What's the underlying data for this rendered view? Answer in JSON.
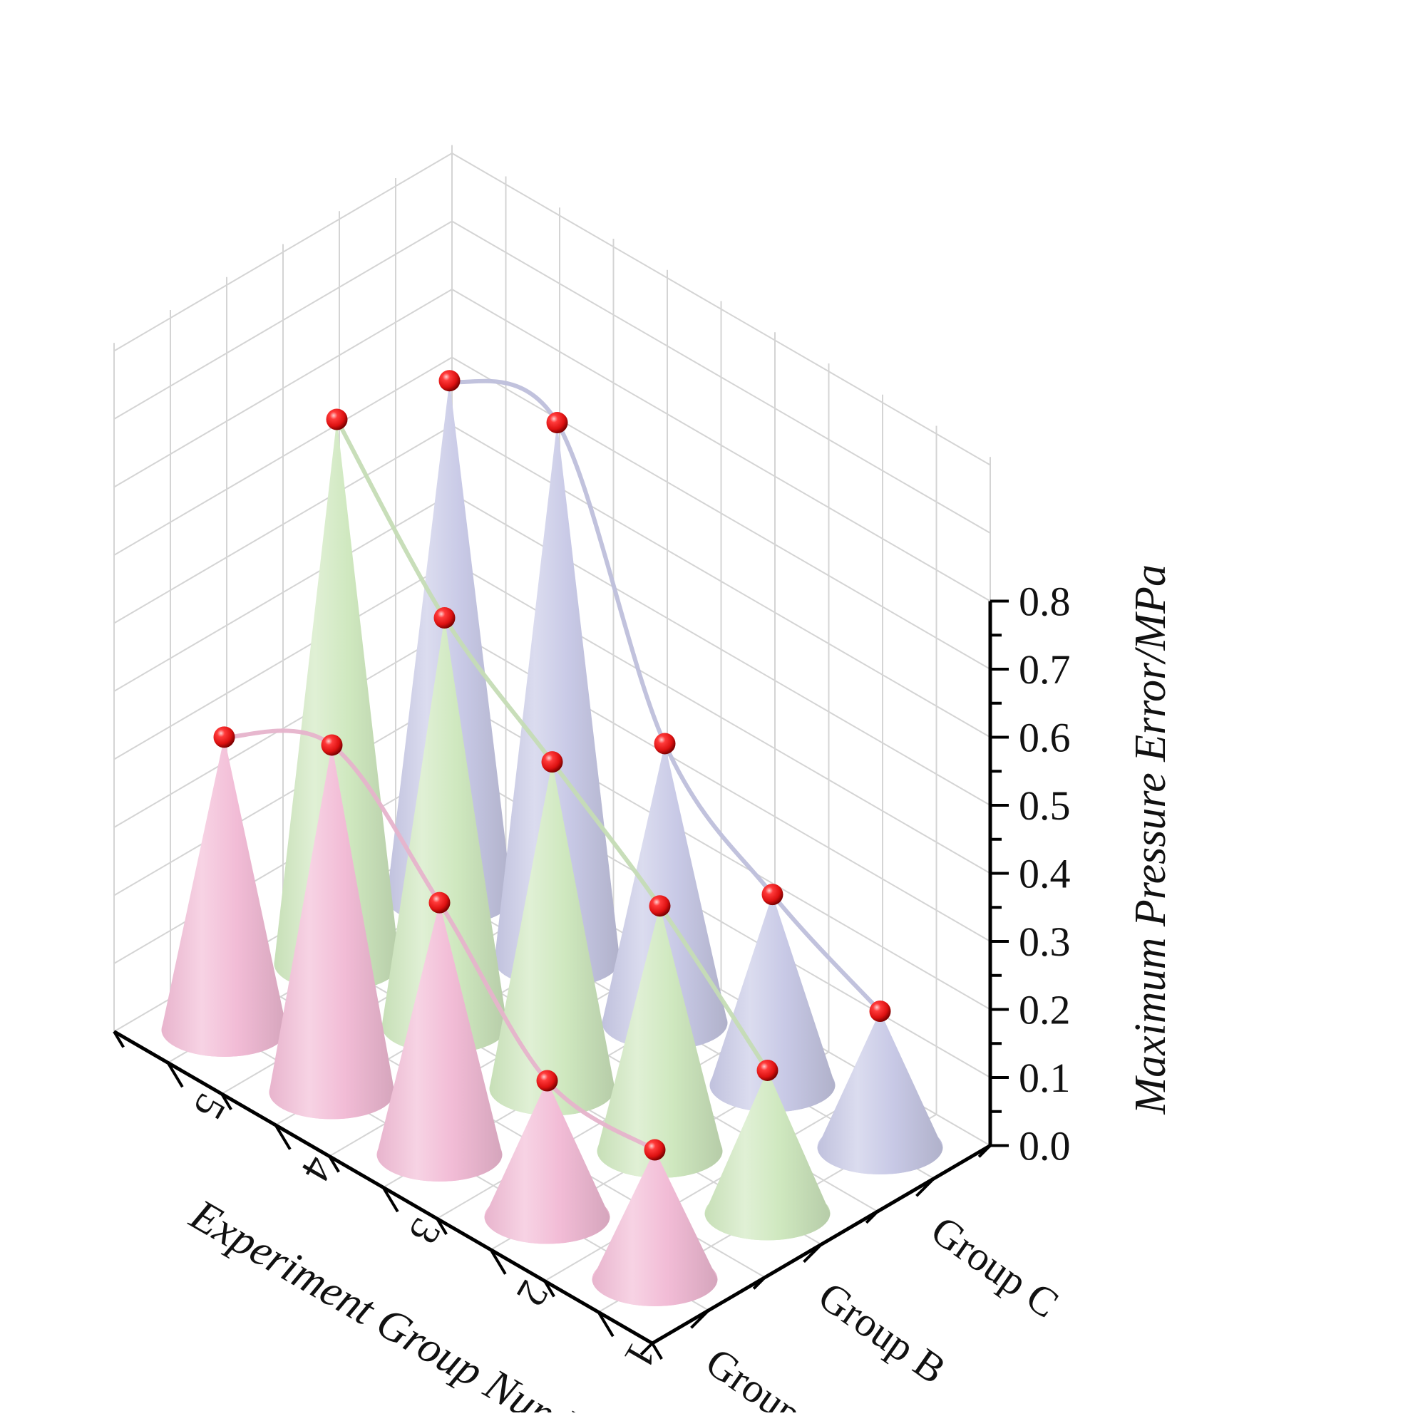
{
  "chart_data": {
    "type": "3d-cone",
    "title": "",
    "xlabel": "Experiment Group Number",
    "ylabel": "",
    "zlabel": "Maximum Pressure Error/MPa",
    "x_categories": [
      "1",
      "2",
      "3",
      "4",
      "5"
    ],
    "y_categories": [
      "Group A",
      "Group B",
      "Group C"
    ],
    "zlim": [
      0.0,
      0.8
    ],
    "z_ticks": [
      "0.0",
      "0.1",
      "0.2",
      "0.3",
      "0.4",
      "0.5",
      "0.6",
      "0.7",
      "0.8"
    ],
    "grid": true,
    "series": [
      {
        "name": "Group A",
        "color": "#f2bcd6",
        "values": [
          0.19,
          0.2,
          0.37,
          0.51,
          0.43
        ]
      },
      {
        "name": "Group B",
        "color": "#cfe8bf",
        "values": [
          0.21,
          0.36,
          0.48,
          0.6,
          0.8
        ]
      },
      {
        "name": "Group C",
        "color": "#c8c9e6",
        "values": [
          0.2,
          0.28,
          0.41,
          0.79,
          0.76
        ]
      }
    ],
    "marker_color": "#dd1111"
  }
}
